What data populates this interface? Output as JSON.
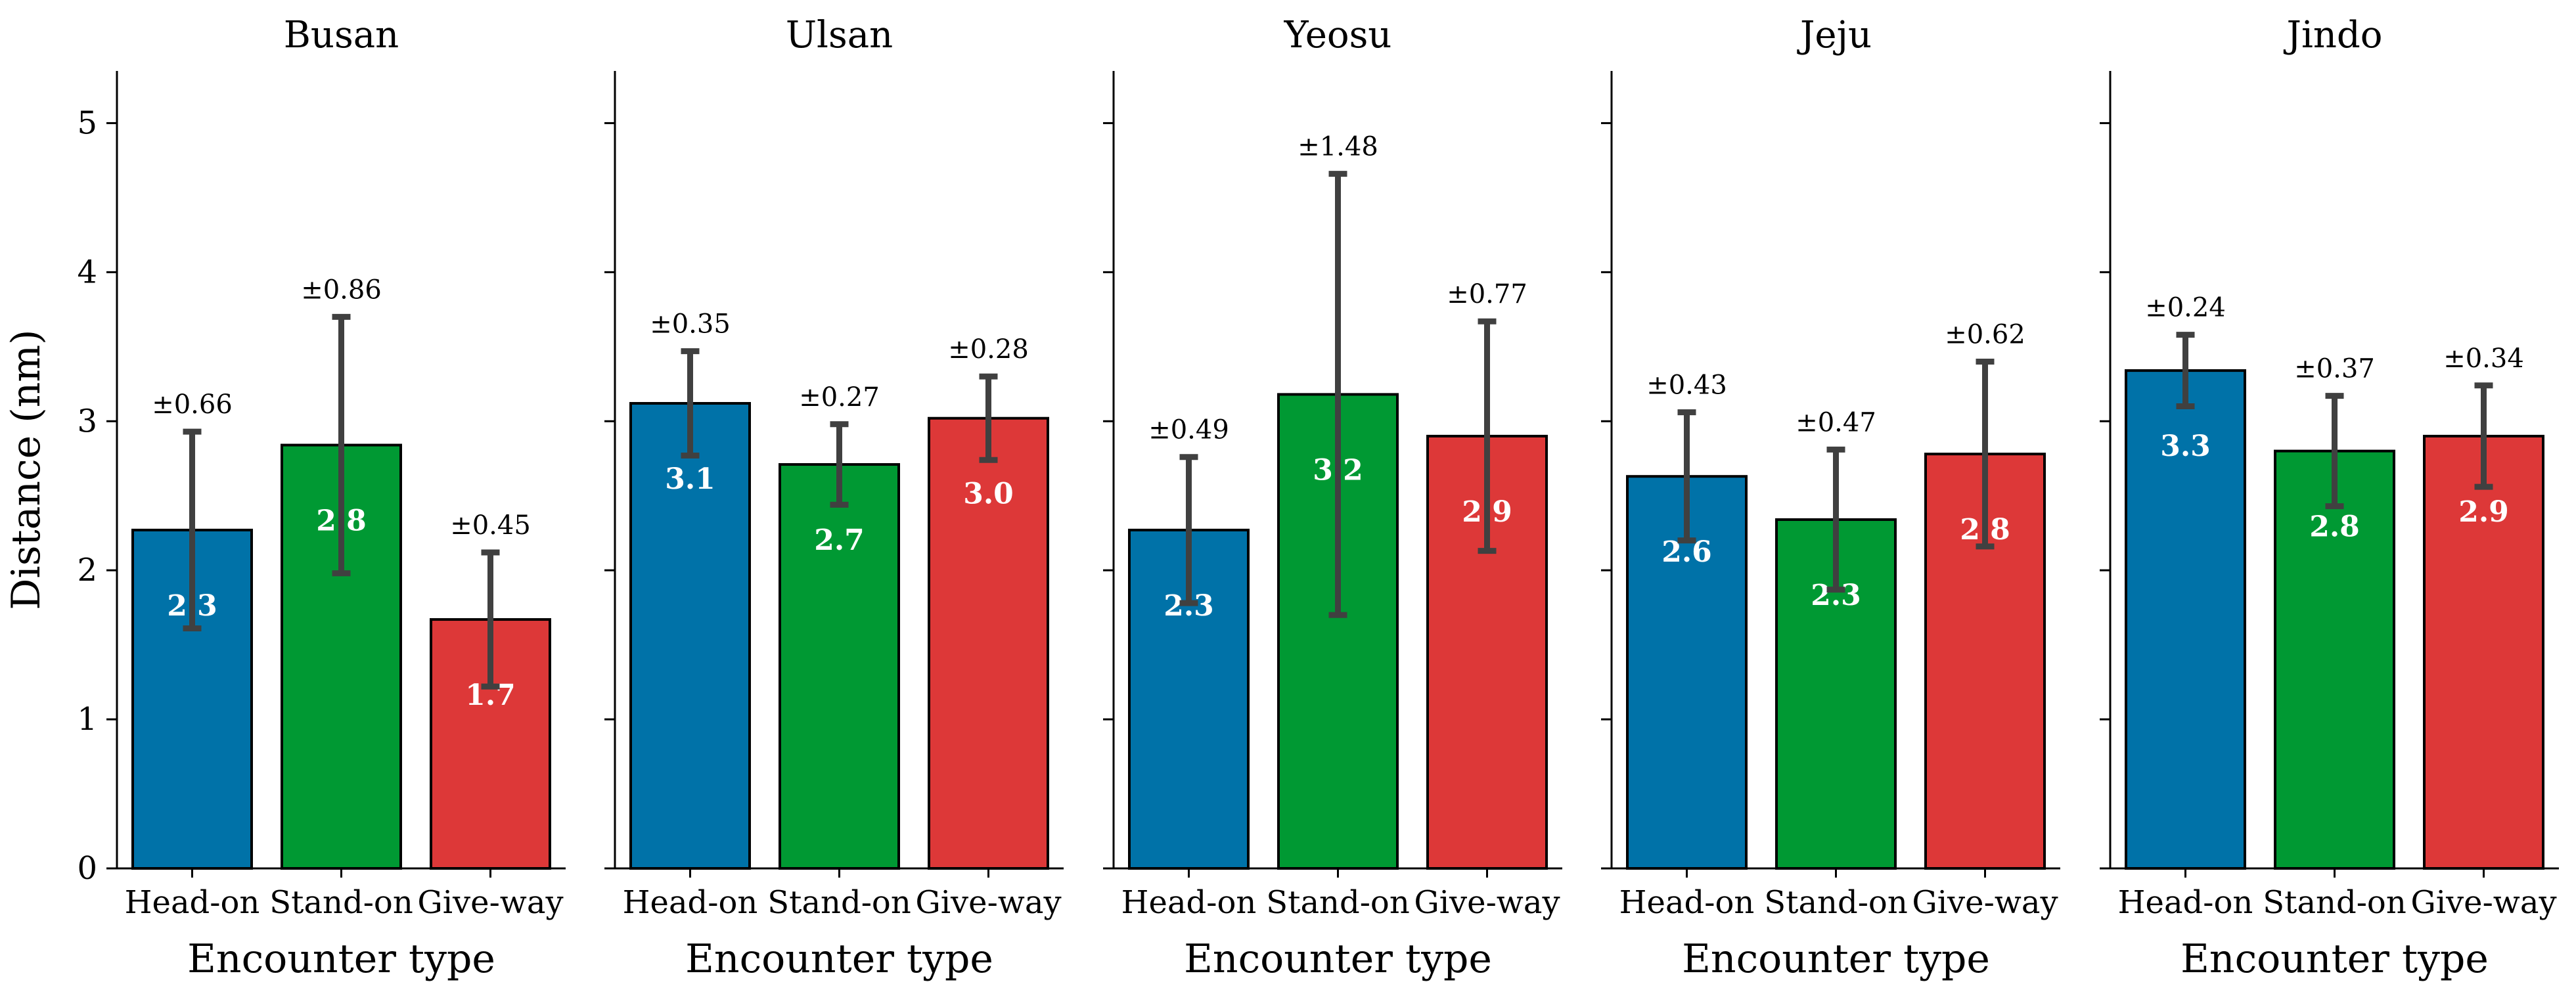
{
  "chart_data": {
    "type": "bar",
    "ylabel": "Distance (nm)",
    "xlabel": "Encounter type",
    "ylim": [
      0,
      5.35
    ],
    "yticks": [
      0,
      1,
      2,
      3,
      4,
      5
    ],
    "categories": [
      "Head-on",
      "Stand-on",
      "Give-way"
    ],
    "colors": [
      "#0072a8",
      "#009933",
      "#dd3838"
    ],
    "error_bar_color": "#404040",
    "grid": false,
    "panels": [
      {
        "title": "Busan",
        "values": [
          2.27,
          2.84,
          1.67
        ],
        "errors": [
          0.66,
          0.86,
          0.45
        ],
        "value_labels": [
          "2.3",
          "2.8",
          "1.7"
        ],
        "error_labels": [
          "±0.66",
          "±0.86",
          "±0.45"
        ]
      },
      {
        "title": "Ulsan",
        "values": [
          3.12,
          2.71,
          3.02
        ],
        "errors": [
          0.35,
          0.27,
          0.28
        ],
        "value_labels": [
          "3.1",
          "2.7",
          "3.0"
        ],
        "error_labels": [
          "±0.35",
          "±0.27",
          "±0.28"
        ]
      },
      {
        "title": "Yeosu",
        "values": [
          2.27,
          3.18,
          2.9
        ],
        "errors": [
          0.49,
          1.48,
          0.77
        ],
        "value_labels": [
          "2.3",
          "3.2",
          "2.9"
        ],
        "error_labels": [
          "±0.49",
          "±1.48",
          "±0.77"
        ]
      },
      {
        "title": "Jeju",
        "values": [
          2.63,
          2.34,
          2.78
        ],
        "errors": [
          0.43,
          0.47,
          0.62
        ],
        "value_labels": [
          "2.6",
          "2.3",
          "2.8"
        ],
        "error_labels": [
          "±0.43",
          "±0.47",
          "±0.62"
        ]
      },
      {
        "title": "Jindo",
        "values": [
          3.34,
          2.8,
          2.9
        ],
        "errors": [
          0.24,
          0.37,
          0.34
        ],
        "value_labels": [
          "3.3",
          "2.8",
          "2.9"
        ],
        "error_labels": [
          "±0.24",
          "±0.37",
          "±0.34"
        ]
      }
    ]
  }
}
